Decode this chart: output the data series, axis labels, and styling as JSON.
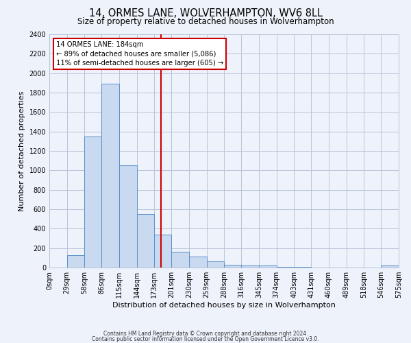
{
  "title": "14, ORMES LANE, WOLVERHAMPTON, WV6 8LL",
  "subtitle": "Size of property relative to detached houses in Wolverhampton",
  "xlabel": "Distribution of detached houses by size in Wolverhampton",
  "ylabel": "Number of detached properties",
  "bin_edges": [
    0,
    29,
    58,
    86,
    115,
    144,
    173,
    201,
    230,
    259,
    288,
    316,
    345,
    374,
    403,
    431,
    460,
    489,
    518,
    546,
    575
  ],
  "bin_heights": [
    0,
    125,
    1350,
    1890,
    1050,
    550,
    340,
    160,
    110,
    65,
    30,
    20,
    20,
    5,
    5,
    0,
    0,
    0,
    0,
    20
  ],
  "bar_facecolor": "#c9d9f0",
  "bar_edgecolor": "#5b8fc9",
  "vline_x": 184,
  "vline_color": "#cc0000",
  "ann_line1": "14 ORMES LANE: 184sqm",
  "ann_line2": "← 89% of detached houses are smaller (5,086)",
  "ann_line3": "11% of semi-detached houses are larger (605) →",
  "ylim": [
    0,
    2400
  ],
  "yticks": [
    0,
    200,
    400,
    600,
    800,
    1000,
    1200,
    1400,
    1600,
    1800,
    2000,
    2200,
    2400
  ],
  "xtick_labels": [
    "0sqm",
    "29sqm",
    "58sqm",
    "86sqm",
    "115sqm",
    "144sqm",
    "173sqm",
    "201sqm",
    "230sqm",
    "259sqm",
    "288sqm",
    "316sqm",
    "345sqm",
    "374sqm",
    "403sqm",
    "431sqm",
    "460sqm",
    "489sqm",
    "518sqm",
    "546sqm",
    "575sqm"
  ],
  "grid_color": "#b8c4d8",
  "bg_color": "#eef2fa",
  "footer1": "Contains HM Land Registry data © Crown copyright and database right 2024.",
  "footer2": "Contains public sector information licensed under the Open Government Licence v3.0."
}
